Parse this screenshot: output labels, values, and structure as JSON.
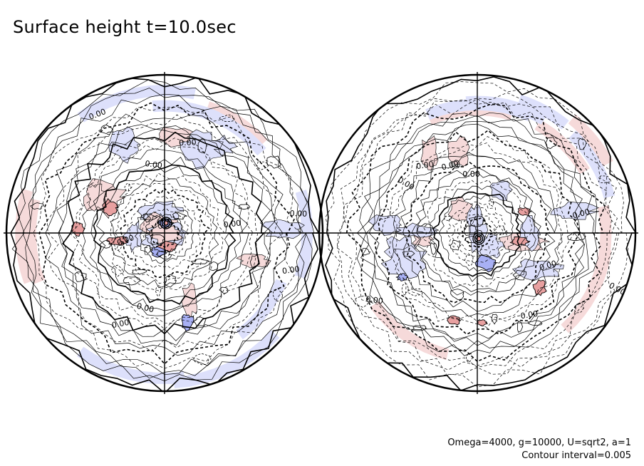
{
  "title": "Surface height t=10.0sec",
  "annotation": {
    "params": "Omega=4000, g=10000, U=sqrt2, a=1",
    "contour_interval": "Contour interval=0.005"
  },
  "contour_label": "0.00",
  "colors": {
    "positive_fill": "#e8a0a0",
    "positive_fill_light": "#f6dada",
    "negative_fill": "#a8b0f4",
    "negative_fill_light": "#dde0fb",
    "line": "#000000"
  },
  "hemispheres": [
    {
      "name": "left"
    },
    {
      "name": "right"
    }
  ]
}
